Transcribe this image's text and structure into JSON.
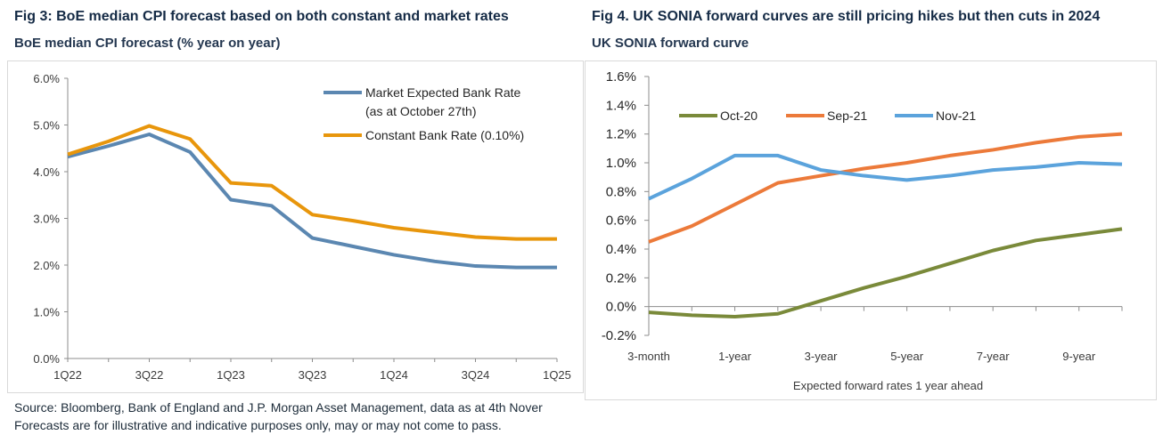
{
  "fig3": {
    "title": "Fig 3: BoE median CPI forecast based on both constant and market rates",
    "subtitle": "BoE median CPI forecast (% year on year)"
  },
  "fig4": {
    "title": "Fig 4. UK SONIA forward curves are still pricing hikes but then cuts in 2024",
    "subtitle": "UK SONIA forward curve"
  },
  "source": {
    "line1": "Source: Bloomberg, Bank of England and J.P. Morgan Asset Management, data as at 4th Nover",
    "line2": "Forecasts are for illustrative and indicative purposes only, may or may not come to pass."
  },
  "chart_data": [
    {
      "type": "line",
      "title": "BoE median CPI forecast (% year on year)",
      "x": [
        "1Q22",
        "2Q22",
        "3Q22",
        "4Q22",
        "1Q23",
        "2Q23",
        "3Q23",
        "4Q23",
        "1Q24",
        "2Q24",
        "3Q24",
        "4Q24",
        "1Q25"
      ],
      "x_tick_labels": [
        "1Q22",
        "3Q22",
        "1Q23",
        "3Q23",
        "1Q24",
        "3Q24",
        "1Q25"
      ],
      "ylim": [
        0,
        6
      ],
      "y_tick_labels": [
        "0.0%",
        "1.0%",
        "2.0%",
        "3.0%",
        "4.0%",
        "5.0%",
        "6.0%"
      ],
      "grid": false,
      "legend_position": "top-right",
      "series": [
        {
          "name": "Market Expected Bank Rate",
          "name_line2": "(as at October 27th)",
          "color": "#5b87b1",
          "values": [
            4.32,
            4.55,
            4.8,
            4.42,
            3.4,
            3.27,
            2.58,
            2.4,
            2.22,
            2.08,
            1.98,
            1.95,
            1.95
          ]
        },
        {
          "name": "Constant Bank Rate (0.10%)",
          "color": "#e8960c",
          "values": [
            4.37,
            4.65,
            4.98,
            4.7,
            3.76,
            3.7,
            3.08,
            2.95,
            2.8,
            2.7,
            2.6,
            2.56,
            2.56
          ]
        }
      ]
    },
    {
      "type": "line",
      "title": "UK SONIA forward curve",
      "xlabel": "Expected forward rates 1 year ahead",
      "x": [
        "3-month",
        "6-month",
        "1-year",
        "2-year",
        "3-year",
        "4-year",
        "5-year",
        "6-year",
        "7-year",
        "8-year",
        "9-year",
        "10-year"
      ],
      "x_tick_labels": [
        "3-month",
        "1-year",
        "3-year",
        "5-year",
        "7-year",
        "9-year"
      ],
      "ylim": [
        -0.2,
        1.6
      ],
      "y_tick_labels": [
        "-0.2%",
        "0.0%",
        "0.2%",
        "0.4%",
        "0.6%",
        "0.8%",
        "1.0%",
        "1.2%",
        "1.4%",
        "1.6%"
      ],
      "grid": false,
      "legend_position": "top-left",
      "series": [
        {
          "name": "Oct-20",
          "color": "#7a8a3a",
          "values": [
            -0.04,
            -0.06,
            -0.07,
            -0.05,
            0.04,
            0.13,
            0.21,
            0.3,
            0.39,
            0.46,
            0.5,
            0.54
          ]
        },
        {
          "name": "Sep-21",
          "color": "#ec7a3a",
          "values": [
            0.45,
            0.56,
            0.71,
            0.86,
            0.91,
            0.96,
            1.0,
            1.05,
            1.09,
            1.14,
            1.18,
            1.2
          ]
        },
        {
          "name": "Nov-21",
          "color": "#5ba3dc",
          "values": [
            0.75,
            0.89,
            1.05,
            1.05,
            0.95,
            0.91,
            0.88,
            0.91,
            0.95,
            0.97,
            1.0,
            0.99
          ]
        }
      ]
    }
  ]
}
